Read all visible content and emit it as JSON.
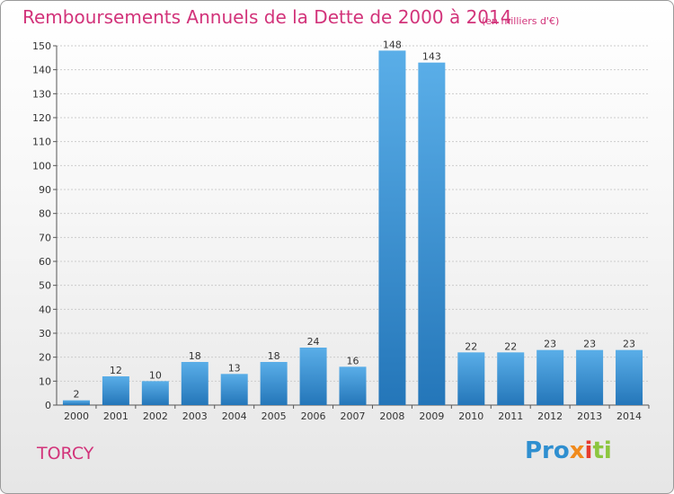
{
  "title": "Remboursements Annuels de la Dette de 2000 à 2014",
  "subtitle": "(en milliers d'€)",
  "commune": "TORCY",
  "logo": {
    "parts": [
      "Pro",
      "x",
      "i",
      "ti"
    ],
    "colors": [
      "#2f8fd0",
      "#f08a1c",
      "#e63a2e",
      "#8cc63f"
    ]
  },
  "colors": {
    "title": "#d2337a",
    "bar_light": "#5aaee8",
    "bar_dark": "#2476b9",
    "grid": "#cccccc"
  },
  "chart_data": {
    "type": "bar",
    "categories": [
      "2000",
      "2001",
      "2002",
      "2003",
      "2004",
      "2005",
      "2006",
      "2007",
      "2008",
      "2009",
      "2010",
      "2011",
      "2012",
      "2013",
      "2014"
    ],
    "values": [
      2,
      12,
      10,
      18,
      13,
      18,
      24,
      16,
      148,
      143,
      22,
      22,
      23,
      23,
      23
    ],
    "ylim": [
      0,
      150
    ],
    "yticks": [
      0,
      10,
      20,
      30,
      40,
      50,
      60,
      70,
      80,
      90,
      100,
      110,
      120,
      130,
      140,
      150
    ],
    "grid": true,
    "xlabel": "",
    "ylabel": ""
  }
}
